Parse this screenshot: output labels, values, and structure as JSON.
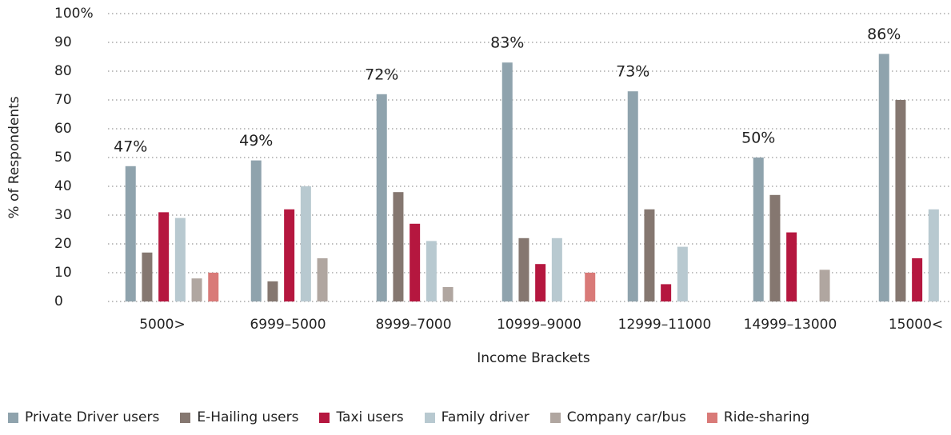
{
  "chart_data": {
    "type": "bar",
    "y_label": "% of Respondents",
    "x_label": "Income Brackets",
    "categories": [
      "5000>",
      "6999–5000",
      "8999–7000",
      "10999–9000",
      "12999–11000",
      "14999–13000",
      "15000<"
    ],
    "series": [
      {
        "name": "Private Driver users",
        "color": "#8fa3ad",
        "values": [
          47,
          49,
          72,
          83,
          73,
          50,
          86
        ],
        "value_labels": [
          "47%",
          "49%",
          "72%",
          "83%",
          "73%",
          "50%",
          "86%"
        ]
      },
      {
        "name": "E-Hailing users",
        "color": "#857770",
        "values": [
          17,
          7,
          38,
          22,
          32,
          37,
          70
        ]
      },
      {
        "name": "Taxi users",
        "color": "#b5173f",
        "values": [
          31,
          32,
          27,
          13,
          6,
          24,
          15
        ]
      },
      {
        "name": "Family driver",
        "color": "#b8c9d0",
        "values": [
          29,
          40,
          21,
          22,
          19,
          null,
          32
        ]
      },
      {
        "name": "Company car/bus",
        "color": "#b0a6a0",
        "values": [
          8,
          15,
          5,
          null,
          null,
          11,
          null
        ]
      },
      {
        "name": "Ride-sharing",
        "color": "#d97a78",
        "values": [
          10,
          null,
          null,
          10,
          null,
          null,
          null
        ]
      }
    ],
    "ylim": [
      0,
      100
    ],
    "yticks": [
      0,
      10,
      20,
      30,
      40,
      50,
      60,
      70,
      80,
      90,
      {
        "value": 100,
        "label": "100%"
      }
    ],
    "grid": true
  }
}
